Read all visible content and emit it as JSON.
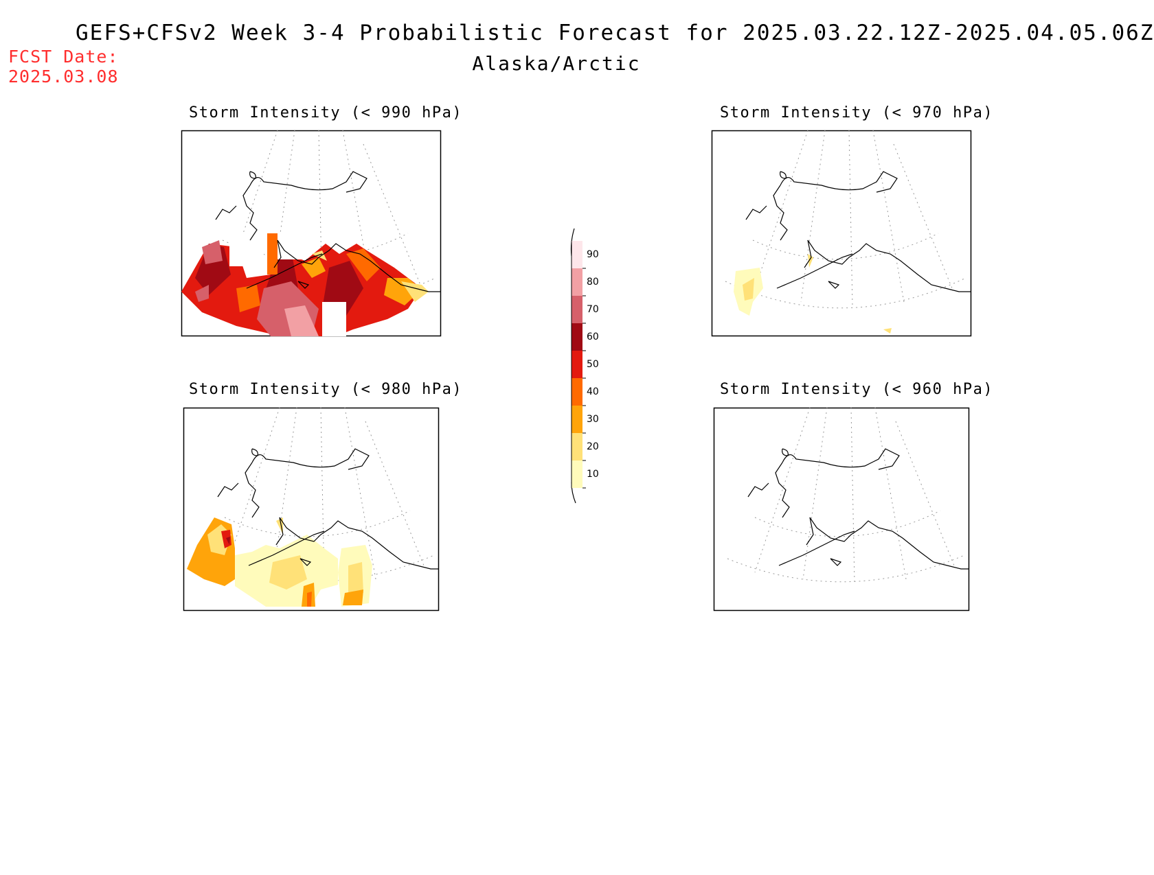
{
  "header": {
    "title": "GEFS+CFSv2 Week 3-4 Probabilistic Forecast for 2025.03.22.12Z-2025.04.05.06Z",
    "subtitle": "Alaska/Arctic",
    "fcst_line1": "FCST Date:",
    "fcst_line2": "2025.03.08"
  },
  "panels": [
    {
      "title": "Storm Intensity (< 990 hPa)"
    },
    {
      "title": "Storm Intensity (< 970 hPa)"
    },
    {
      "title": "Storm Intensity (< 980 hPa)"
    },
    {
      "title": "Storm Intensity (< 960 hPa)"
    }
  ],
  "colorbar": {
    "levels": [
      "90",
      "80",
      "70",
      "60",
      "50",
      "40",
      "30",
      "20",
      "10"
    ],
    "colors": [
      "#fde6ea",
      "#f2a0a4",
      "#d6606a",
      "#a00a14",
      "#e31a0f",
      "#ff6a00",
      "#ffa40a",
      "#ffe178",
      "#fffbbb"
    ]
  }
}
